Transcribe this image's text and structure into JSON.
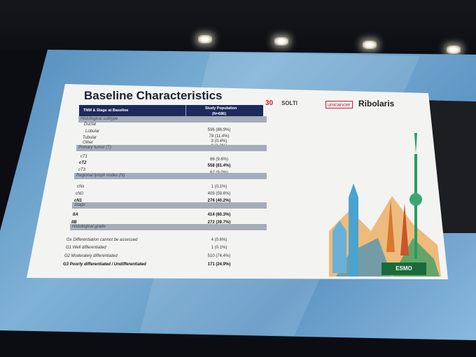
{
  "slide": {
    "title": "Baseline Characteristics",
    "table": {
      "header_left": "TNM & Stage at Baseline",
      "header_right": "Study Population",
      "header_right_n": "(N=686)",
      "sections": [
        {
          "label": "Histological subtype",
          "rows": [
            {
              "label": "Ductal",
              "value": "596 (86.9%)"
            },
            {
              "label": "Lobular",
              "value": "78 (11.4%)"
            },
            {
              "label": "Tubular",
              "value": "3 (0.4%)"
            },
            {
              "label": "Other",
              "value": "9 (1.3%)"
            }
          ]
        },
        {
          "label": "Primary tumor (T)",
          "rows": [
            {
              "label": "cT1",
              "value": "66 (9.6%)"
            },
            {
              "label": "cT2",
              "value": "558 (81.4%)",
              "bold": true
            },
            {
              "label": "cT3",
              "value": "62 (9.0%)"
            }
          ]
        },
        {
          "label": "Regional lymph nodes (N)",
          "rows": [
            {
              "label": "cNx",
              "value": "1 (0.1%)"
            },
            {
              "label": "cN0",
              "value": "409 (59.6%)"
            },
            {
              "label": "cN1",
              "value": "276 (40.2%)",
              "bold": true
            }
          ]
        },
        {
          "label": "Stage",
          "rows": [
            {
              "label": "IIA",
              "value": "414 (60.3%)",
              "bold": true
            },
            {
              "label": "IIB",
              "value": "272 (39.7%)",
              "bold": true
            }
          ]
        },
        {
          "label": "Histological grade",
          "rows": [
            {
              "label": "Gx Differentiation cannot be assessed",
              "value": "4 (0.6%)"
            },
            {
              "label": "G1 Well differentiated",
              "value": "1 (0.1%)"
            },
            {
              "label": "G2 Moderately differentiated",
              "value": "510 (74.4%)"
            },
            {
              "label": "G3 Poorly differentiated / Undifferentiated",
              "value": "171 (24.9%)",
              "bold": true
            }
          ]
        }
      ]
    },
    "logos": {
      "solti_anniversary": "30",
      "solti": "SOLTI",
      "unicancer": "unicancer",
      "ribolaris": "Ribolaris",
      "esmo": "ESMO"
    },
    "colors": {
      "header": "#1d2a5c",
      "section_bar": "#a4adb9",
      "screen": "#5e95c3"
    }
  }
}
